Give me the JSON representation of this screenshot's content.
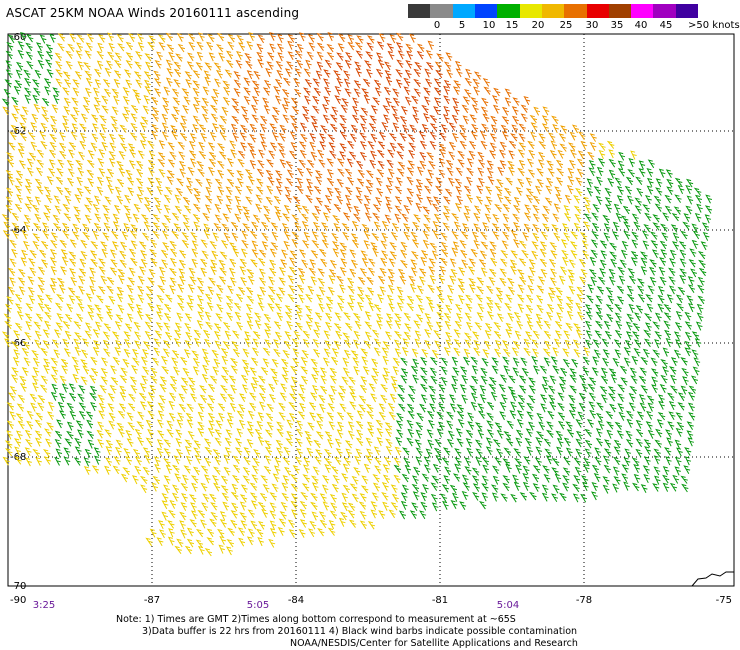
{
  "title": "ASCAT 25KM NOAA Winds 20160111 ascending",
  "scale": {
    "colors": [
      "#3a3a3a",
      "#8a8a8a",
      "#00a8ff",
      "#0044ff",
      "#00b000",
      "#e8e800",
      "#f0b800",
      "#e87000",
      "#e80000",
      "#a04000",
      "#ff00ff",
      "#a000c0",
      "#4000a0"
    ],
    "labels": [
      "0",
      "5",
      "10",
      "15",
      "20",
      "25",
      "30",
      "35",
      "40",
      "45"
    ],
    "max_label": ">50 knots"
  },
  "axes": {
    "lat_labels": [
      "-60",
      "-62",
      "-64",
      "-66",
      "-68",
      "-70"
    ],
    "lon_labels": [
      "-90",
      "-87",
      "-84",
      "-81",
      "-78",
      "-75"
    ],
    "times": [
      "3:25",
      "5:05",
      "5:04"
    ]
  },
  "notes": {
    "line1": "Note: 1) Times are GMT 2)Times along bottom correspond to measurement at ~65S",
    "line2": "3)Data buffer is 22 hrs from 20160111 4) Black wind barbs indicate possible contamination",
    "line3": "NOAA/NESDIS/Center for Satellite Applications and Research"
  }
}
